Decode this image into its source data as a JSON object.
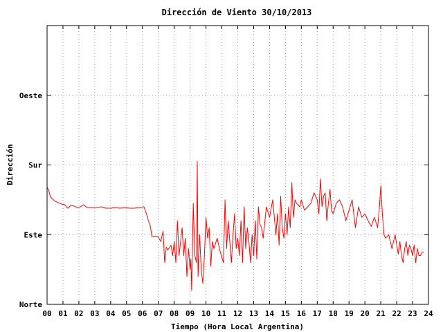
{
  "chart_data": {
    "type": "line",
    "title": "Dirección de Viento 30/10/2013",
    "xlabel": "Tiempo (Hora Local Argentina)",
    "ylabel": "Dirección",
    "xlim": [
      0,
      24
    ],
    "ylim": [
      0,
      400
    ],
    "x_ticks": [
      {
        "value": 0,
        "label": "00"
      },
      {
        "value": 1,
        "label": "01"
      },
      {
        "value": 2,
        "label": "02"
      },
      {
        "value": 3,
        "label": "03"
      },
      {
        "value": 4,
        "label": "04"
      },
      {
        "value": 5,
        "label": "05"
      },
      {
        "value": 6,
        "label": "06"
      },
      {
        "value": 7,
        "label": "07"
      },
      {
        "value": 8,
        "label": "08"
      },
      {
        "value": 9,
        "label": "09"
      },
      {
        "value": 10,
        "label": "10"
      },
      {
        "value": 11,
        "label": "11"
      },
      {
        "value": 12,
        "label": "12"
      },
      {
        "value": 13,
        "label": "13"
      },
      {
        "value": 14,
        "label": "14"
      },
      {
        "value": 15,
        "label": "15"
      },
      {
        "value": 16,
        "label": "16"
      },
      {
        "value": 17,
        "label": "17"
      },
      {
        "value": 18,
        "label": "18"
      },
      {
        "value": 19,
        "label": "19"
      },
      {
        "value": 20,
        "label": "20"
      },
      {
        "value": 21,
        "label": "21"
      },
      {
        "value": 22,
        "label": "22"
      },
      {
        "value": 23,
        "label": "23"
      },
      {
        "value": 24,
        "label": "24"
      }
    ],
    "y_ticks": [
      {
        "value": 0,
        "label": "Norte"
      },
      {
        "value": 100,
        "label": "Este"
      },
      {
        "value": 200,
        "label": "Sur"
      },
      {
        "value": 300,
        "label": "Oeste"
      }
    ],
    "grid": true,
    "line_color": "#ff0000",
    "series": [
      {
        "values": [
          [
            0.0,
            168
          ],
          [
            0.1,
            164
          ],
          [
            0.2,
            155
          ],
          [
            0.3,
            152
          ],
          [
            0.4,
            150
          ],
          [
            0.5,
            148
          ],
          [
            0.7,
            146
          ],
          [
            0.9,
            144
          ],
          [
            1.1,
            143
          ],
          [
            1.3,
            138
          ],
          [
            1.5,
            142
          ],
          [
            1.7,
            141
          ],
          [
            1.9,
            139
          ],
          [
            2.1,
            140
          ],
          [
            2.3,
            143
          ],
          [
            2.5,
            139
          ],
          [
            2.8,
            139
          ],
          [
            3.1,
            139
          ],
          [
            3.4,
            140
          ],
          [
            3.7,
            138
          ],
          [
            4.0,
            138
          ],
          [
            4.3,
            139
          ],
          [
            4.6,
            138
          ],
          [
            4.9,
            139
          ],
          [
            5.2,
            138
          ],
          [
            5.5,
            138
          ],
          [
            5.8,
            139
          ],
          [
            6.1,
            140
          ],
          [
            6.25,
            130
          ],
          [
            6.35,
            122
          ],
          [
            6.5,
            112
          ],
          [
            6.6,
            97
          ],
          [
            6.8,
            98
          ],
          [
            7.0,
            97
          ],
          [
            7.15,
            90
          ],
          [
            7.3,
            105
          ],
          [
            7.4,
            60
          ],
          [
            7.5,
            82
          ],
          [
            7.6,
            78
          ],
          [
            7.8,
            85
          ],
          [
            7.9,
            70
          ],
          [
            8.0,
            90
          ],
          [
            8.1,
            60
          ],
          [
            8.2,
            120
          ],
          [
            8.3,
            70
          ],
          [
            8.4,
            90
          ],
          [
            8.5,
            110
          ],
          [
            8.6,
            70
          ],
          [
            8.7,
            95
          ],
          [
            8.8,
            40
          ],
          [
            8.9,
            80
          ],
          [
            9.0,
            50
          ],
          [
            9.05,
            65
          ],
          [
            9.1,
            20
          ],
          [
            9.2,
            145
          ],
          [
            9.3,
            70
          ],
          [
            9.4,
            60
          ],
          [
            9.45,
            205
          ],
          [
            9.5,
            40
          ],
          [
            9.6,
            100
          ],
          [
            9.7,
            50
          ],
          [
            9.8,
            30
          ],
          [
            9.9,
            70
          ],
          [
            10.0,
            125
          ],
          [
            10.1,
            95
          ],
          [
            10.2,
            110
          ],
          [
            10.3,
            55
          ],
          [
            10.4,
            90
          ],
          [
            10.5,
            80
          ],
          [
            10.7,
            95
          ],
          [
            10.9,
            75
          ],
          [
            11.1,
            60
          ],
          [
            11.2,
            150
          ],
          [
            11.3,
            80
          ],
          [
            11.4,
            120
          ],
          [
            11.5,
            90
          ],
          [
            11.6,
            60
          ],
          [
            11.7,
            100
          ],
          [
            11.8,
            130
          ],
          [
            11.9,
            80
          ],
          [
            12.0,
            95
          ],
          [
            12.1,
            70
          ],
          [
            12.2,
            120
          ],
          [
            12.3,
            60
          ],
          [
            12.4,
            140
          ],
          [
            12.5,
            80
          ],
          [
            12.6,
            110
          ],
          [
            12.7,
            90
          ],
          [
            12.8,
            60
          ],
          [
            12.9,
            100
          ],
          [
            13.0,
            70
          ],
          [
            13.1,
            120
          ],
          [
            13.2,
            65
          ],
          [
            13.3,
            140
          ],
          [
            13.4,
            115
          ],
          [
            13.5,
            110
          ],
          [
            13.6,
            95
          ],
          [
            13.8,
            140
          ],
          [
            14.0,
            125
          ],
          [
            14.2,
            150
          ],
          [
            14.4,
            100
          ],
          [
            14.5,
            130
          ],
          [
            14.6,
            85
          ],
          [
            14.7,
            155
          ],
          [
            14.8,
            110
          ],
          [
            14.9,
            95
          ],
          [
            15.0,
            130
          ],
          [
            15.1,
            100
          ],
          [
            15.2,
            140
          ],
          [
            15.3,
            110
          ],
          [
            15.4,
            175
          ],
          [
            15.5,
            125
          ],
          [
            15.6,
            150
          ],
          [
            15.7,
            145
          ],
          [
            15.9,
            140
          ],
          [
            16.0,
            150
          ],
          [
            16.2,
            135
          ],
          [
            16.4,
            140
          ],
          [
            16.6,
            145
          ],
          [
            16.8,
            160
          ],
          [
            17.0,
            150
          ],
          [
            17.1,
            130
          ],
          [
            17.2,
            180
          ],
          [
            17.3,
            140
          ],
          [
            17.4,
            155
          ],
          [
            17.5,
            160
          ],
          [
            17.6,
            120
          ],
          [
            17.7,
            145
          ],
          [
            17.8,
            165
          ],
          [
            17.9,
            135
          ],
          [
            18.0,
            130
          ],
          [
            18.2,
            145
          ],
          [
            18.4,
            150
          ],
          [
            18.6,
            140
          ],
          [
            18.8,
            120
          ],
          [
            19.0,
            135
          ],
          [
            19.2,
            150
          ],
          [
            19.4,
            110
          ],
          [
            19.6,
            140
          ],
          [
            19.8,
            125
          ],
          [
            20.0,
            130
          ],
          [
            20.2,
            120
          ],
          [
            20.4,
            112
          ],
          [
            20.6,
            125
          ],
          [
            20.8,
            110
          ],
          [
            20.9,
            135
          ],
          [
            21.0,
            170
          ],
          [
            21.1,
            130
          ],
          [
            21.2,
            100
          ],
          [
            21.3,
            95
          ],
          [
            21.5,
            100
          ],
          [
            21.7,
            80
          ],
          [
            21.9,
            100
          ],
          [
            22.1,
            72
          ],
          [
            22.2,
            90
          ],
          [
            22.3,
            70
          ],
          [
            22.4,
            60
          ],
          [
            22.5,
            80
          ],
          [
            22.6,
            90
          ],
          [
            22.7,
            70
          ],
          [
            22.8,
            85
          ],
          [
            22.9,
            80
          ],
          [
            23.0,
            70
          ],
          [
            23.1,
            85
          ],
          [
            23.2,
            60
          ],
          [
            23.3,
            80
          ],
          [
            23.4,
            70
          ],
          [
            23.5,
            70
          ],
          [
            23.6,
            75
          ],
          [
            23.7,
            75
          ]
        ]
      }
    ]
  }
}
